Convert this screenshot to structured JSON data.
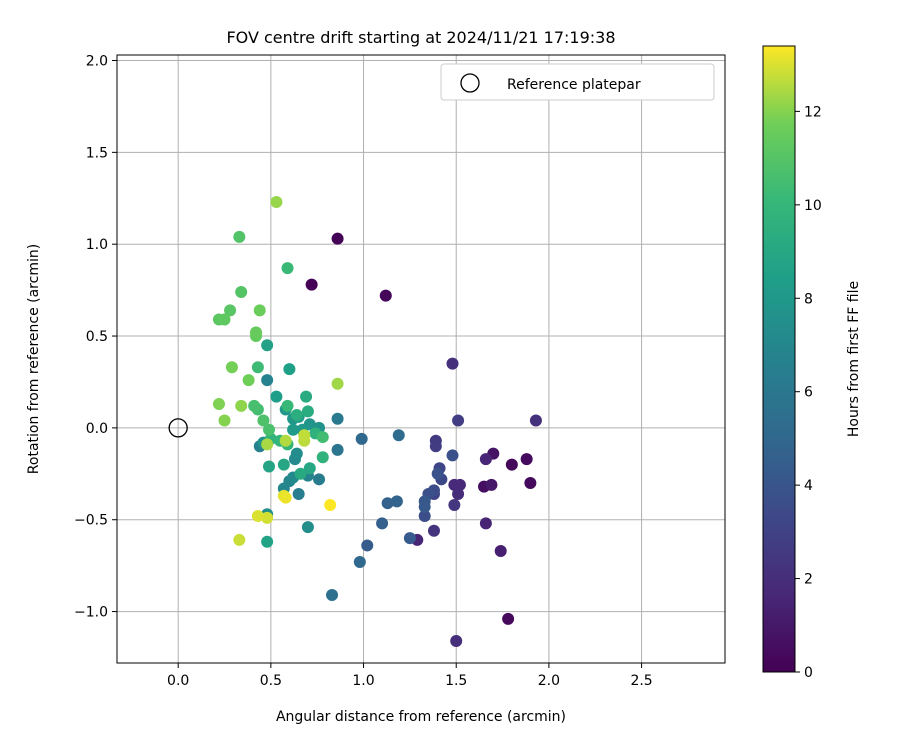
{
  "chart_data": {
    "type": "scatter",
    "title": "FOV centre drift starting at 2024/11/21 17:19:38",
    "xlabel": "Angular distance from reference (arcmin)",
    "ylabel": "Rotation from reference (arcmin)",
    "xlim": [
      -0.33,
      2.95
    ],
    "ylim": [
      -1.28,
      2.03
    ],
    "xticks": [
      0.0,
      0.5,
      1.0,
      1.5,
      2.0,
      2.5
    ],
    "yticks": [
      -1.0,
      -0.5,
      0.0,
      0.5,
      1.0,
      1.5,
      2.0
    ],
    "xtick_labels": [
      "0.0",
      "0.5",
      "1.0",
      "1.5",
      "2.0",
      "2.5"
    ],
    "ytick_labels": [
      "−1.0",
      "−0.5",
      "0.0",
      "0.5",
      "1.0",
      "1.5",
      "2.0"
    ],
    "grid": true,
    "legend": {
      "position": "top-right",
      "entries": [
        "Reference platepar"
      ]
    },
    "reference_point": {
      "x": 0.0,
      "y": 0.0,
      "marker": "open-circle"
    },
    "colorbar": {
      "label": "Hours from first FF file",
      "range": [
        0,
        13.4
      ],
      "ticks": [
        0,
        2,
        4,
        6,
        8,
        10,
        12
      ],
      "tick_labels": [
        "0",
        "2",
        "4",
        "6",
        "8",
        "10",
        "12"
      ],
      "colormap": "viridis"
    },
    "points": [
      {
        "x": 0.86,
        "y": 1.03,
        "c": 0.1
      },
      {
        "x": 0.72,
        "y": 0.78,
        "c": 0.1
      },
      {
        "x": 1.12,
        "y": 0.72,
        "c": 0.2
      },
      {
        "x": 1.78,
        "y": -1.04,
        "c": 0.3
      },
      {
        "x": 1.8,
        "y": -0.2,
        "c": 0.3
      },
      {
        "x": 1.88,
        "y": -0.17,
        "c": 0.4
      },
      {
        "x": 1.9,
        "y": -0.3,
        "c": 0.4
      },
      {
        "x": 1.65,
        "y": -0.32,
        "c": 0.6
      },
      {
        "x": 1.7,
        "y": -0.14,
        "c": 0.8
      },
      {
        "x": 1.69,
        "y": -0.31,
        "c": 1.0
      },
      {
        "x": 1.74,
        "y": -0.67,
        "c": 1.3
      },
      {
        "x": 1.66,
        "y": -0.52,
        "c": 1.5
      },
      {
        "x": 1.66,
        "y": -0.17,
        "c": 1.6
      },
      {
        "x": 1.29,
        "y": -0.61,
        "c": 1.6
      },
      {
        "x": 1.52,
        "y": -0.31,
        "c": 1.7
      },
      {
        "x": 1.49,
        "y": -0.31,
        "c": 1.8
      },
      {
        "x": 1.51,
        "y": -0.36,
        "c": 1.9
      },
      {
        "x": 1.5,
        "y": -1.16,
        "c": 2.0
      },
      {
        "x": 1.48,
        "y": 0.35,
        "c": 2.1
      },
      {
        "x": 1.93,
        "y": 0.04,
        "c": 2.1
      },
      {
        "x": 1.38,
        "y": -0.56,
        "c": 2.3
      },
      {
        "x": 1.49,
        "y": -0.42,
        "c": 2.4
      },
      {
        "x": 1.39,
        "y": -0.07,
        "c": 2.6
      },
      {
        "x": 1.39,
        "y": -0.1,
        "c": 2.7
      },
      {
        "x": 1.51,
        "y": 0.04,
        "c": 2.8
      },
      {
        "x": 1.38,
        "y": -0.36,
        "c": 3.0
      },
      {
        "x": 1.41,
        "y": -0.22,
        "c": 3.1
      },
      {
        "x": 1.42,
        "y": -0.28,
        "c": 3.3
      },
      {
        "x": 1.38,
        "y": -0.34,
        "c": 3.5
      },
      {
        "x": 1.33,
        "y": -0.48,
        "c": 3.6
      },
      {
        "x": 1.35,
        "y": -0.36,
        "c": 3.7
      },
      {
        "x": 1.48,
        "y": -0.15,
        "c": 3.8
      },
      {
        "x": 1.4,
        "y": -0.25,
        "c": 3.9
      },
      {
        "x": 1.33,
        "y": -0.4,
        "c": 4.1
      },
      {
        "x": 1.33,
        "y": -0.43,
        "c": 4.2
      },
      {
        "x": 1.25,
        "y": -0.6,
        "c": 4.3
      },
      {
        "x": 1.02,
        "y": -0.64,
        "c": 4.4
      },
      {
        "x": 1.1,
        "y": -0.52,
        "c": 4.6
      },
      {
        "x": 1.13,
        "y": -0.41,
        "c": 4.7
      },
      {
        "x": 1.18,
        "y": -0.4,
        "c": 4.8
      },
      {
        "x": 0.98,
        "y": -0.73,
        "c": 5.0
      },
      {
        "x": 0.99,
        "y": -0.06,
        "c": 5.1
      },
      {
        "x": 1.19,
        "y": -0.04,
        "c": 5.3
      },
      {
        "x": 0.83,
        "y": -0.91,
        "c": 5.6
      },
      {
        "x": 0.86,
        "y": -0.12,
        "c": 5.9
      },
      {
        "x": 0.86,
        "y": 0.05,
        "c": 6.1
      },
      {
        "x": 0.76,
        "y": -0.28,
        "c": 6.3
      },
      {
        "x": 0.65,
        "y": -0.36,
        "c": 6.4
      },
      {
        "x": 0.44,
        "y": -0.1,
        "c": 6.6
      },
      {
        "x": 0.48,
        "y": 0.26,
        "c": 6.7
      },
      {
        "x": 0.7,
        "y": -0.26,
        "c": 6.8
      },
      {
        "x": 0.6,
        "y": -0.29,
        "c": 6.9
      },
      {
        "x": 0.57,
        "y": -0.33,
        "c": 7.0
      },
      {
        "x": 0.62,
        "y": -0.27,
        "c": 7.1
      },
      {
        "x": 0.63,
        "y": -0.17,
        "c": 7.2
      },
      {
        "x": 0.64,
        "y": -0.14,
        "c": 7.3
      },
      {
        "x": 0.7,
        "y": -0.54,
        "c": 7.4
      },
      {
        "x": 0.48,
        "y": -0.47,
        "c": 7.5
      },
      {
        "x": 0.46,
        "y": -0.08,
        "c": 7.6
      },
      {
        "x": 0.76,
        "y": 0.0,
        "c": 7.7
      },
      {
        "x": 0.71,
        "y": 0.02,
        "c": 7.8
      },
      {
        "x": 0.62,
        "y": 0.05,
        "c": 7.9
      },
      {
        "x": 0.58,
        "y": 0.1,
        "c": 8.0
      },
      {
        "x": 0.67,
        "y": -0.01,
        "c": 8.1
      },
      {
        "x": 0.62,
        "y": -0.01,
        "c": 8.2
      },
      {
        "x": 0.65,
        "y": 0.06,
        "c": 8.3
      },
      {
        "x": 0.53,
        "y": 0.17,
        "c": 8.4
      },
      {
        "x": 0.6,
        "y": 0.32,
        "c": 8.5
      },
      {
        "x": 0.48,
        "y": 0.45,
        "c": 8.6
      },
      {
        "x": 0.48,
        "y": -0.62,
        "c": 8.7
      },
      {
        "x": 0.49,
        "y": -0.21,
        "c": 8.8
      },
      {
        "x": 0.57,
        "y": -0.2,
        "c": 8.9
      },
      {
        "x": 0.71,
        "y": -0.22,
        "c": 9.0
      },
      {
        "x": 0.66,
        "y": -0.25,
        "c": 9.1
      },
      {
        "x": 0.69,
        "y": 0.17,
        "c": 9.2
      },
      {
        "x": 0.7,
        "y": 0.09,
        "c": 9.3
      },
      {
        "x": 0.64,
        "y": 0.07,
        "c": 9.4
      },
      {
        "x": 0.74,
        "y": -0.03,
        "c": 9.6
      },
      {
        "x": 0.78,
        "y": -0.16,
        "c": 9.7
      },
      {
        "x": 0.5,
        "y": -0.06,
        "c": 9.8
      },
      {
        "x": 0.55,
        "y": -0.07,
        "c": 9.9
      },
      {
        "x": 0.59,
        "y": -0.09,
        "c": 10.0
      },
      {
        "x": 0.59,
        "y": 0.12,
        "c": 10.1
      },
      {
        "x": 0.59,
        "y": 0.87,
        "c": 10.2
      },
      {
        "x": 0.43,
        "y": 0.33,
        "c": 10.3
      },
      {
        "x": 0.78,
        "y": -0.05,
        "c": 10.4
      },
      {
        "x": 0.43,
        "y": 0.1,
        "c": 10.5
      },
      {
        "x": 0.41,
        "y": 0.12,
        "c": 10.6
      },
      {
        "x": 0.49,
        "y": -0.01,
        "c": 10.7
      },
      {
        "x": 0.46,
        "y": 0.04,
        "c": 10.8
      },
      {
        "x": 0.33,
        "y": 1.04,
        "c": 10.9
      },
      {
        "x": 0.34,
        "y": 0.74,
        "c": 11.0
      },
      {
        "x": 0.28,
        "y": 0.64,
        "c": 11.1
      },
      {
        "x": 0.22,
        "y": 0.59,
        "c": 11.2
      },
      {
        "x": 0.25,
        "y": 0.59,
        "c": 11.3
      },
      {
        "x": 0.42,
        "y": 0.5,
        "c": 11.4
      },
      {
        "x": 0.42,
        "y": 0.52,
        "c": 11.5
      },
      {
        "x": 0.44,
        "y": 0.64,
        "c": 11.6
      },
      {
        "x": 0.38,
        "y": 0.26,
        "c": 11.7
      },
      {
        "x": 0.29,
        "y": 0.33,
        "c": 11.8
      },
      {
        "x": 0.22,
        "y": 0.13,
        "c": 11.9
      },
      {
        "x": 0.25,
        "y": 0.04,
        "c": 12.0
      },
      {
        "x": 0.34,
        "y": 0.12,
        "c": 12.1
      },
      {
        "x": 0.53,
        "y": 1.23,
        "c": 12.2
      },
      {
        "x": 0.86,
        "y": 0.24,
        "c": 12.3
      },
      {
        "x": 0.48,
        "y": -0.09,
        "c": 12.4
      },
      {
        "x": 0.58,
        "y": -0.07,
        "c": 12.5
      },
      {
        "x": 0.68,
        "y": -0.07,
        "c": 12.6
      },
      {
        "x": 0.68,
        "y": -0.04,
        "c": 12.7
      },
      {
        "x": 0.33,
        "y": -0.61,
        "c": 12.8
      },
      {
        "x": 0.48,
        "y": -0.49,
        "c": 12.9
      },
      {
        "x": 0.43,
        "y": -0.48,
        "c": 13.0
      },
      {
        "x": 0.57,
        "y": -0.37,
        "c": 13.1
      },
      {
        "x": 0.58,
        "y": -0.38,
        "c": 13.2
      },
      {
        "x": 0.82,
        "y": -0.42,
        "c": 13.4
      }
    ]
  }
}
